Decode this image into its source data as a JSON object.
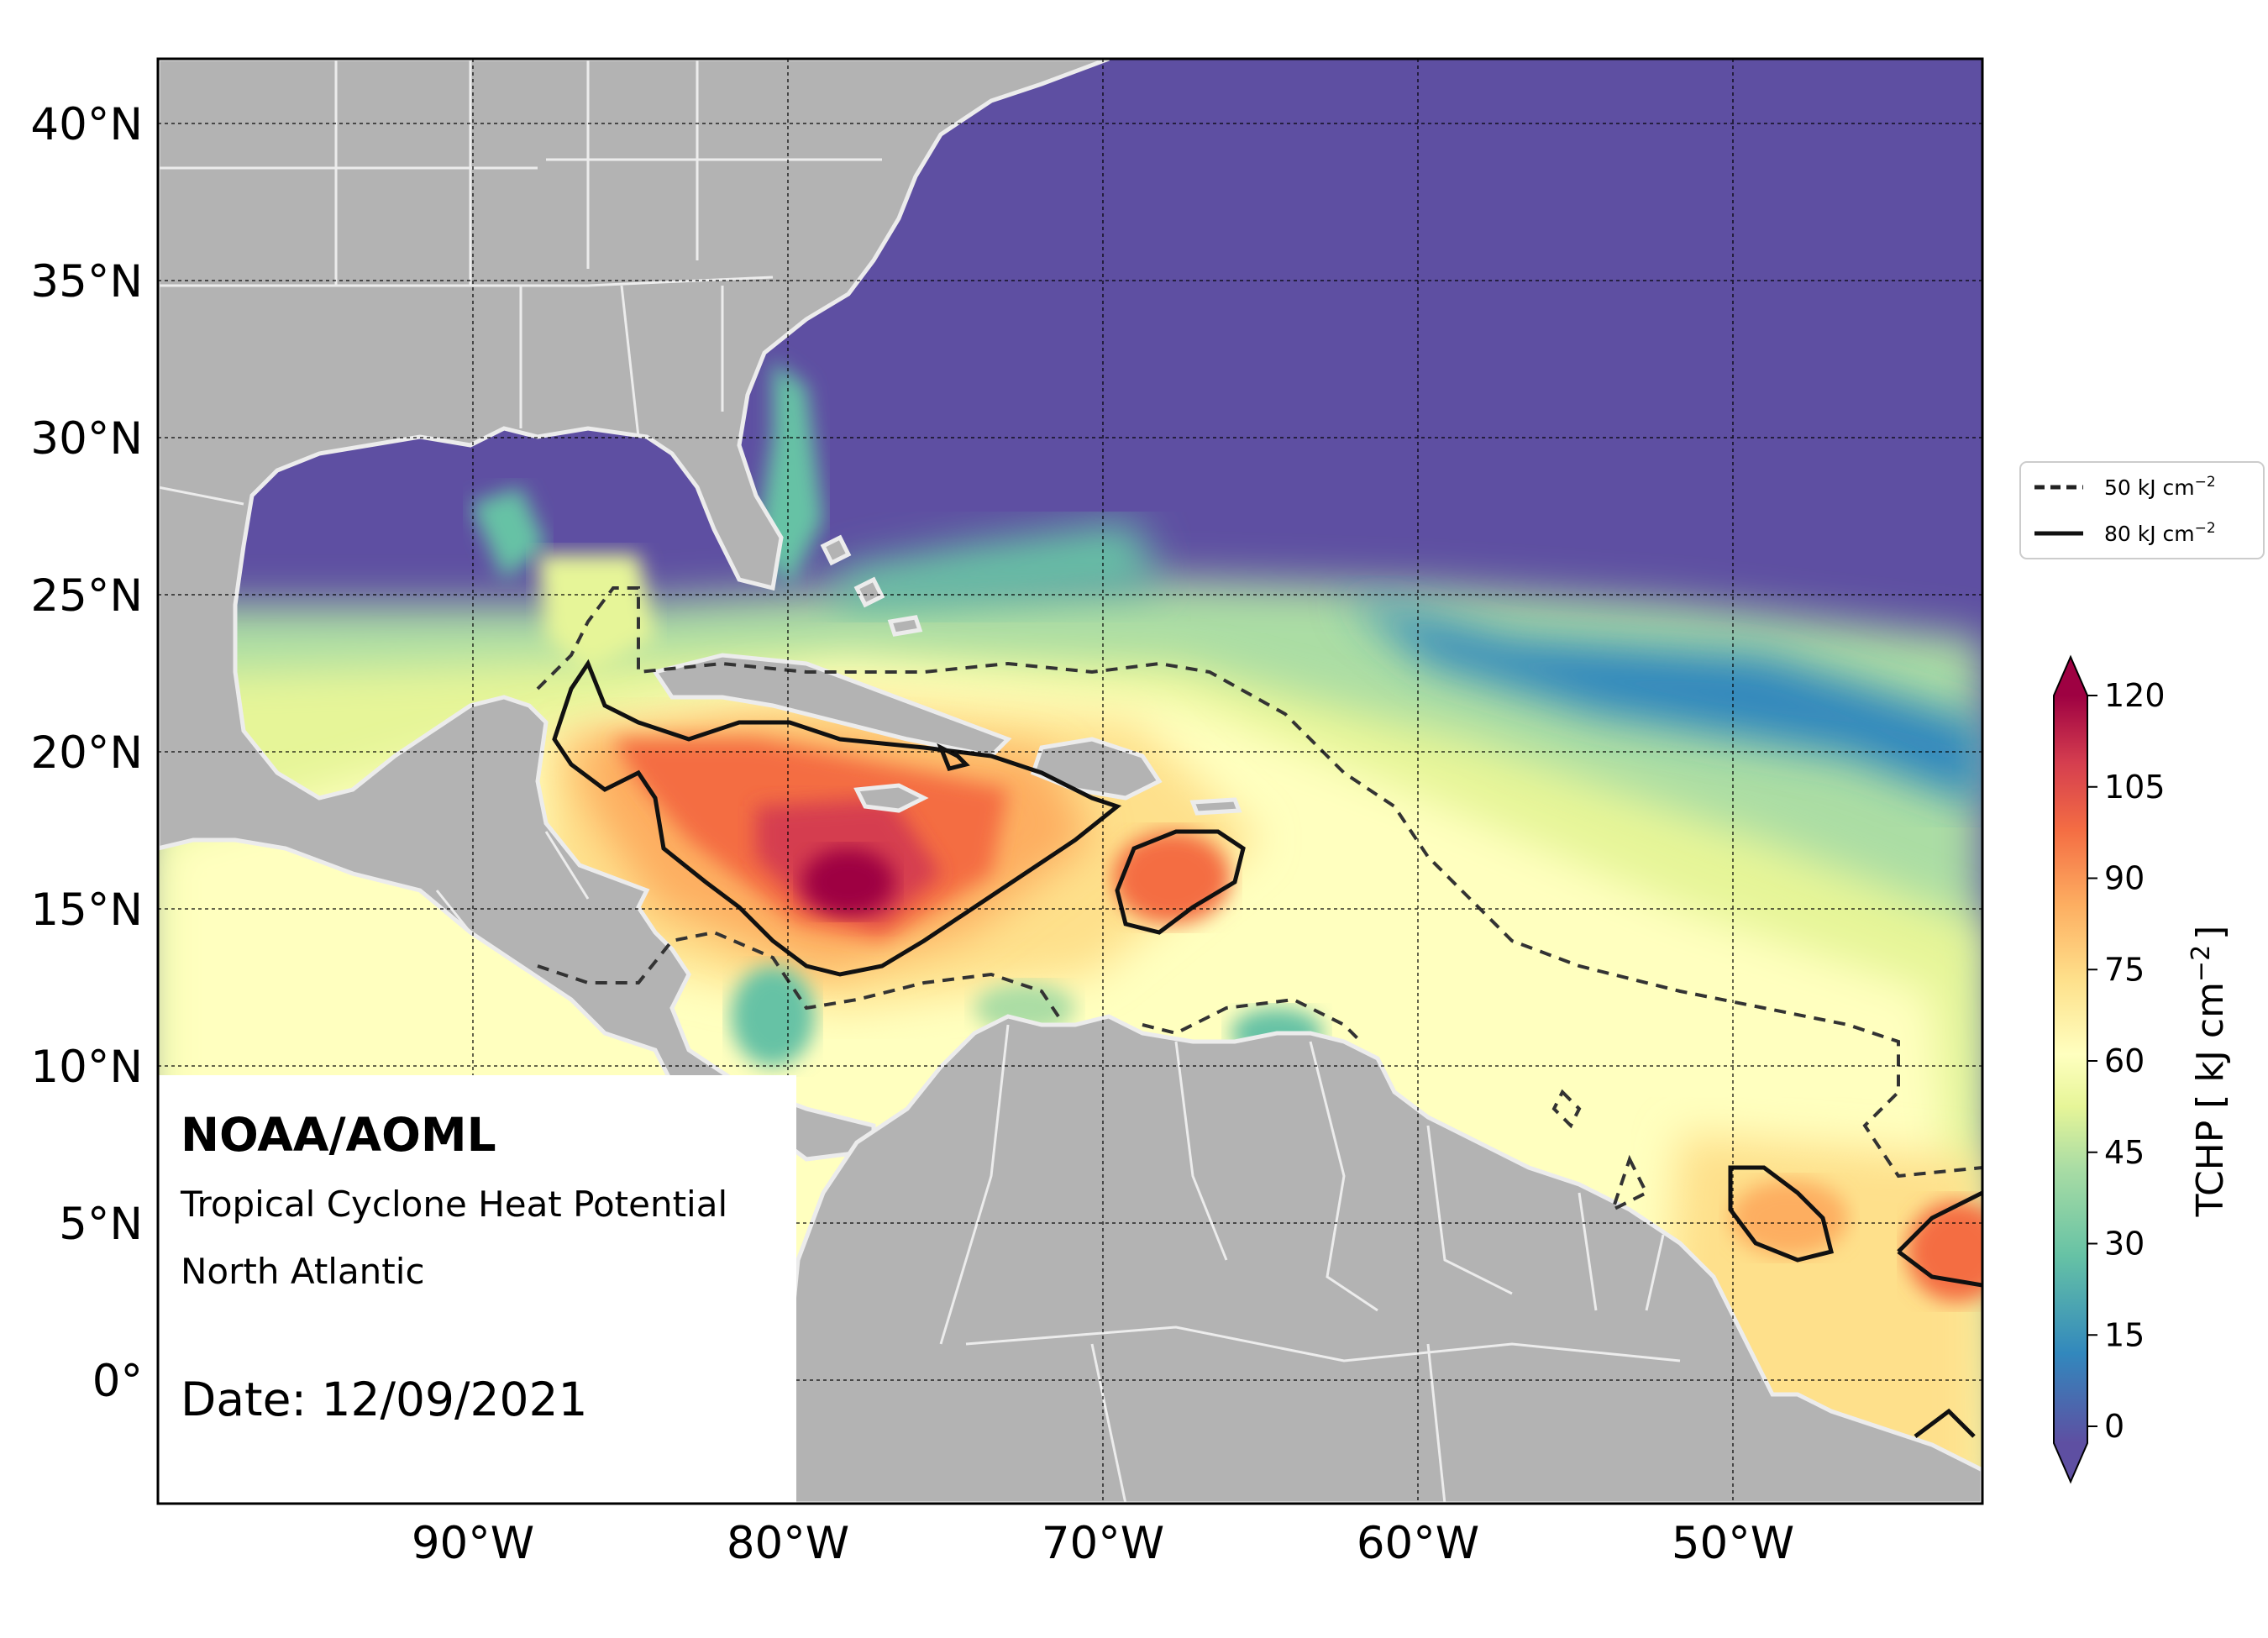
{
  "map": {
    "lon_range": [
      -100,
      -42
    ],
    "lat_range": [
      -4,
      42
    ],
    "lon_ticks": [
      {
        "value": -90,
        "label": "90°W"
      },
      {
        "value": -80,
        "label": "80°W"
      },
      {
        "value": -70,
        "label": "70°W"
      },
      {
        "value": -60,
        "label": "60°W"
      },
      {
        "value": -50,
        "label": "50°W"
      }
    ],
    "lat_ticks": [
      {
        "value": 40,
        "label": "40°N"
      },
      {
        "value": 35,
        "label": "35°N"
      },
      {
        "value": 30,
        "label": "30°N"
      },
      {
        "value": 25,
        "label": "25°N"
      },
      {
        "value": 20,
        "label": "20°N"
      },
      {
        "value": 15,
        "label": "15°N"
      },
      {
        "value": 10,
        "label": "10°N"
      },
      {
        "value": 5,
        "label": "5°N"
      },
      {
        "value": 0,
        "label": "0°"
      }
    ],
    "land_color": "#b3b3b3",
    "gridlines": "dashed"
  },
  "annotation": {
    "org": "NOAA/AOML",
    "product": "Tropical Cyclone Heat Potential",
    "region": "North Atlantic",
    "date": "Date: 12/09/2021"
  },
  "legend": {
    "dashed_label": "50 kJ cm",
    "solid_label": "80 kJ cm",
    "exponent": "−2"
  },
  "colorbar": {
    "label": "TCHP [ kJ cm",
    "label_exp": "−2",
    "label_end": "]",
    "ticks": [
      "0",
      "15",
      "30",
      "45",
      "60",
      "75",
      "90",
      "105",
      "120"
    ],
    "colors": [
      "#5e4fa2",
      "#3288bd",
      "#66c2a5",
      "#abdda4",
      "#e6f598",
      "#ffffbf",
      "#fee08b",
      "#fdae61",
      "#f46d43",
      "#d53e4f",
      "#9e0142"
    ]
  }
}
